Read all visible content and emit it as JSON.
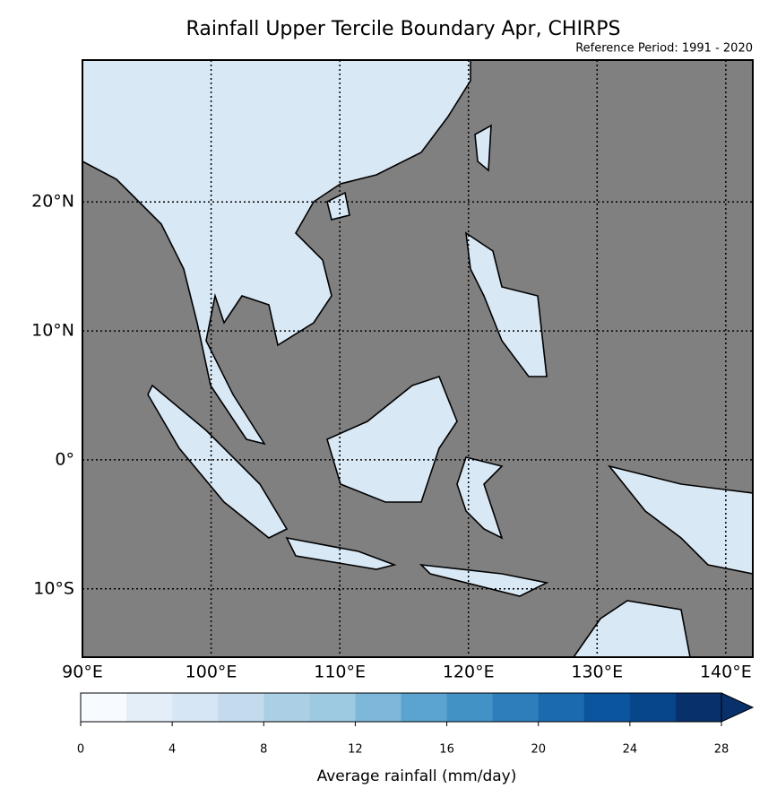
{
  "title": "Rainfall Upper Tercile Boundary Apr, CHIRPS",
  "subtitle": "Reference Period: 1991 - 2020",
  "map": {
    "lon_range": [
      90,
      142.1
    ],
    "lat_range": [
      -15.3,
      31
    ],
    "lon_ticks": [
      {
        "value": 90,
        "label": "90°E"
      },
      {
        "value": 100,
        "label": "100°E"
      },
      {
        "value": 110,
        "label": "110°E"
      },
      {
        "value": 120,
        "label": "120°E"
      },
      {
        "value": 130,
        "label": "130°E"
      },
      {
        "value": 140,
        "label": "140°E"
      }
    ],
    "lat_ticks": [
      {
        "value": 20,
        "label": "20°N"
      },
      {
        "value": 10,
        "label": "10°N"
      },
      {
        "value": 0,
        "label": "0°"
      },
      {
        "value": -10,
        "label": "10°S"
      }
    ]
  },
  "colorbar": {
    "label": "Average rainfall (mm/day)",
    "levels": [
      0,
      2,
      4,
      6,
      8,
      10,
      12,
      14,
      16,
      18,
      20,
      22,
      24,
      26,
      28
    ],
    "ticks": [
      0,
      4,
      8,
      12,
      16,
      20,
      24,
      28
    ],
    "colors": [
      "#f7fbff",
      "#e3eef9",
      "#d6e6f4",
      "#c4dbee",
      "#abd0e6",
      "#9ecae1",
      "#7db8da",
      "#5ba3d0",
      "#4292c6",
      "#2f7ebc",
      "#1b69af",
      "#0b559f",
      "#08468b",
      "#08306b"
    ]
  }
}
